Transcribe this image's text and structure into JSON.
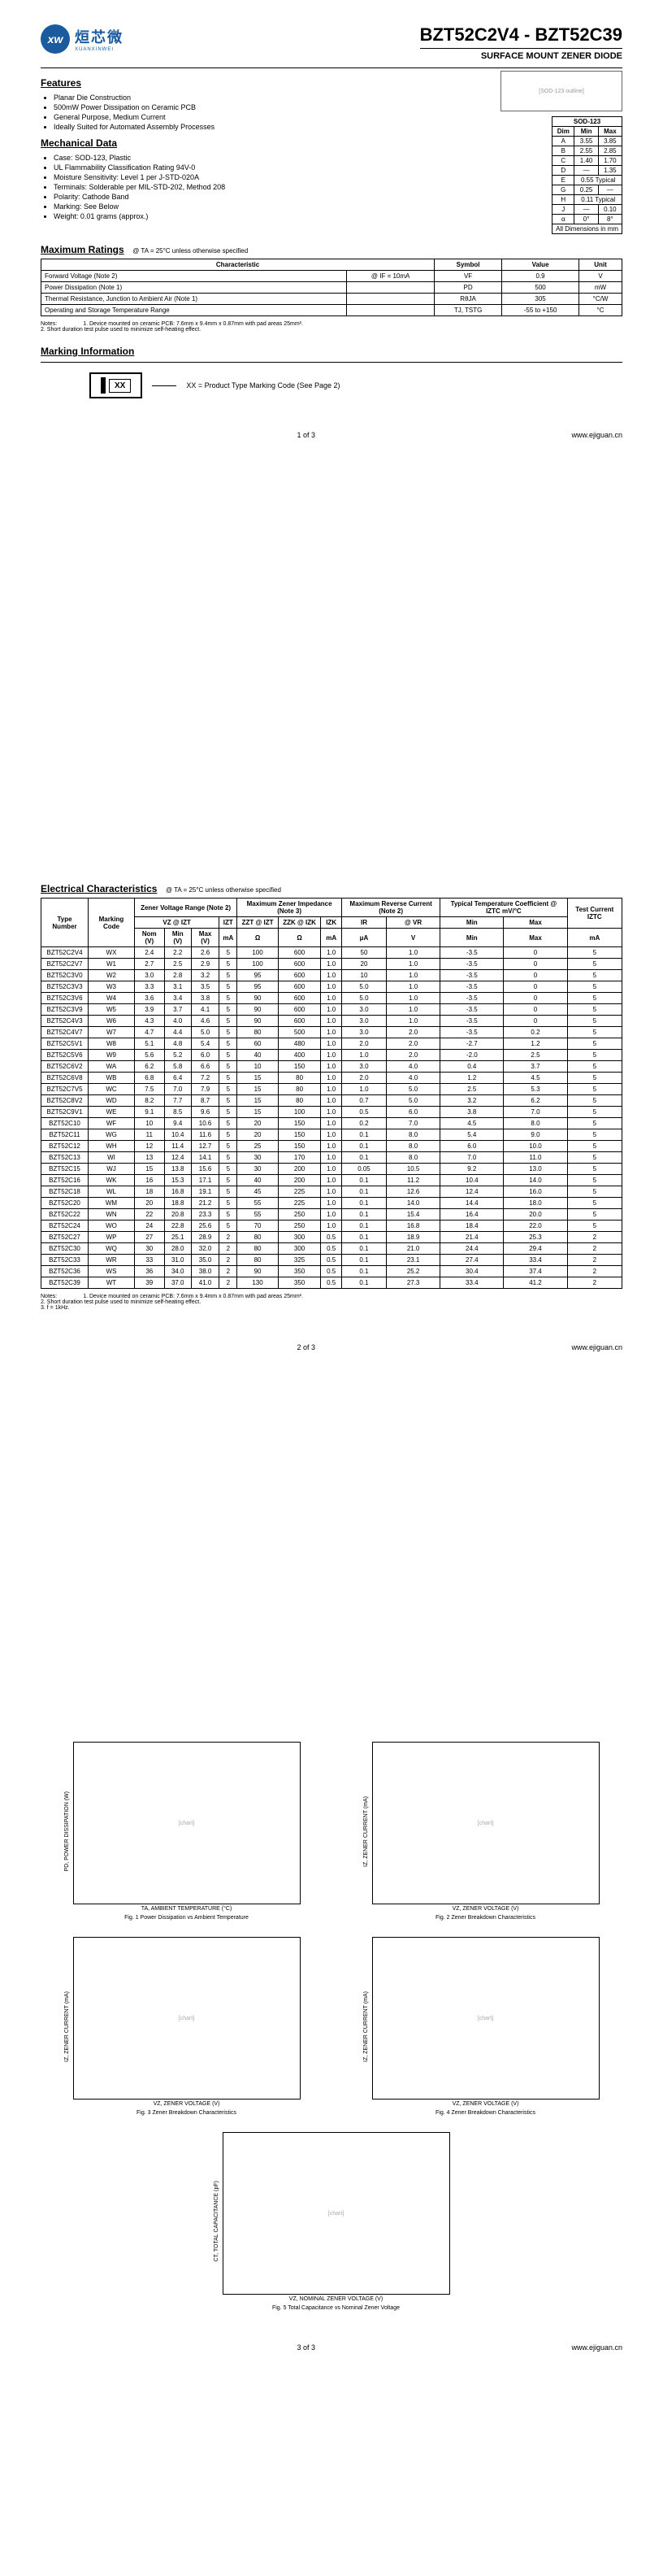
{
  "header": {
    "logo_cn": "烜芯微",
    "logo_en": "XUANXINWEI",
    "logo_mark": "xw",
    "title": "BZT52C2V4 - BZT52C39",
    "subtitle": "SURFACE MOUNT ZENER DIODE"
  },
  "sections": {
    "features": "Features",
    "mech": "Mechanical Data",
    "max_ratings": "Maximum Ratings",
    "marking": "Marking Information",
    "elec": "Electrical Characteristics"
  },
  "features": [
    "Planar Die Construction",
    "500mW Power Dissipation on Ceramic PCB",
    "General Purpose, Medium Current",
    "Ideally Suited for Automated Assembly Processes"
  ],
  "mech": [
    "Case: SOD-123, Plastic",
    "UL Flammability Classification Rating 94V-0",
    "Moisture Sensitivity: Level 1 per J-STD-020A",
    "Terminals: Solderable per MIL-STD-202, Method 208",
    "Polarity: Cathode Band",
    "Marking: See Below",
    "Weight: 0.01 grams (approx.)"
  ],
  "sod_title": "SOD-123",
  "sod_headers": [
    "Dim",
    "Min",
    "Max"
  ],
  "sod_rows": [
    [
      "A",
      "3.55",
      "3.85"
    ],
    [
      "B",
      "2.55",
      "2.85"
    ],
    [
      "C",
      "1.40",
      "1.70"
    ],
    [
      "D",
      "—",
      "1.35"
    ],
    [
      "E",
      "0.55 Typical",
      ""
    ],
    [
      "G",
      "0.25",
      "—"
    ],
    [
      "H",
      "0.11 Typical",
      ""
    ],
    [
      "J",
      "—",
      "0.10"
    ],
    [
      "α",
      "0°",
      "8°"
    ]
  ],
  "sod_footer": "All Dimensions in mm",
  "max_cond": "@ TA = 25°C unless otherwise specified",
  "max_headers": [
    "Characteristic",
    "Symbol",
    "Value",
    "Unit"
  ],
  "max_rows": [
    [
      "Forward Voltage (Note 2)",
      "@ IF = 10mA",
      "VF",
      "0.9",
      "V"
    ],
    [
      "Power Dissipation (Note 1)",
      "",
      "PD",
      "500",
      "mW"
    ],
    [
      "Thermal Resistance, Junction to Ambient Air (Note 1)",
      "",
      "RθJA",
      "305",
      "°C/W"
    ],
    [
      "Operating and Storage Temperature Range",
      "",
      "TJ, TSTG",
      "-55 to +150",
      "°C"
    ]
  ],
  "max_notes_label": "Notes:",
  "max_notes": [
    "1. Device mounted on ceramic PCB: 7.6mm x 9.4mm x 0.87mm with pad areas 25mm².",
    "2. Short duration test pulse used to minimize self-heating effect."
  ],
  "marking_code": "XX",
  "marking_text": "XX = Product Type Marking Code (See Page 2)",
  "footer": {
    "p1": "1 of 3",
    "p2": "2 of 3",
    "p3": "3 of 3",
    "url": "www.ejiguan.cn"
  },
  "elec_cond": "@ TA = 25°C unless otherwise specified",
  "elec_group_headers": {
    "type": "Type Number",
    "mark": "Marking Code",
    "zvr": "Zener Voltage Range (Note 2)",
    "mzi": "Maximum Zener Impedance (Note 3)",
    "mrc": "Maximum Reverse Current (Note 2)",
    "ttc": "Typical Temperature Coefficient @ IZTC mV/°C",
    "test": "Test Current IZTC"
  },
  "elec_sub_headers": {
    "vz": "VZ @ IZT",
    "izt": "IZT",
    "zzt": "ZZT @ IZT",
    "zzk": "ZZK @ IZK",
    "izk": "IZK",
    "ir": "IR",
    "vr": "@ VR",
    "min": "Min",
    "max": "Max"
  },
  "elec_val_headers": [
    "Nom (V)",
    "Min (V)",
    "Max (V)",
    "mA",
    "Ω",
    "Ω",
    "mA",
    "μA",
    "V",
    "Min",
    "Max",
    "mA"
  ],
  "elec_rows": [
    [
      "BZT52C2V4",
      "WX",
      "2.4",
      "2.2",
      "2.6",
      "5",
      "100",
      "600",
      "1.0",
      "50",
      "1.0",
      "-3.5",
      "0",
      "5"
    ],
    [
      "BZT52C2V7",
      "W1",
      "2.7",
      "2.5",
      "2.9",
      "5",
      "100",
      "600",
      "1.0",
      "20",
      "1.0",
      "-3.5",
      "0",
      "5"
    ],
    [
      "BZT52C3V0",
      "W2",
      "3.0",
      "2.8",
      "3.2",
      "5",
      "95",
      "600",
      "1.0",
      "10",
      "1.0",
      "-3.5",
      "0",
      "5"
    ],
    [
      "BZT52C3V3",
      "W3",
      "3.3",
      "3.1",
      "3.5",
      "5",
      "95",
      "600",
      "1.0",
      "5.0",
      "1.0",
      "-3.5",
      "0",
      "5"
    ],
    [
      "BZT52C3V6",
      "W4",
      "3.6",
      "3.4",
      "3.8",
      "5",
      "90",
      "600",
      "1.0",
      "5.0",
      "1.0",
      "-3.5",
      "0",
      "5"
    ],
    [
      "BZT52C3V9",
      "W5",
      "3.9",
      "3.7",
      "4.1",
      "5",
      "90",
      "600",
      "1.0",
      "3.0",
      "1.0",
      "-3.5",
      "0",
      "5"
    ],
    [
      "BZT52C4V3",
      "W6",
      "4.3",
      "4.0",
      "4.6",
      "5",
      "90",
      "600",
      "1.0",
      "3.0",
      "1.0",
      "-3.5",
      "0",
      "5"
    ],
    [
      "BZT52C4V7",
      "W7",
      "4.7",
      "4.4",
      "5.0",
      "5",
      "80",
      "500",
      "1.0",
      "3.0",
      "2.0",
      "-3.5",
      "0.2",
      "5"
    ],
    [
      "BZT52C5V1",
      "W8",
      "5.1",
      "4.8",
      "5.4",
      "5",
      "60",
      "480",
      "1.0",
      "2.0",
      "2.0",
      "-2.7",
      "1.2",
      "5"
    ],
    [
      "BZT52C5V6",
      "W9",
      "5.6",
      "5.2",
      "6.0",
      "5",
      "40",
      "400",
      "1.0",
      "1.0",
      "2.0",
      "-2.0",
      "2.5",
      "5"
    ],
    [
      "BZT52C6V2",
      "WA",
      "6.2",
      "5.8",
      "6.6",
      "5",
      "10",
      "150",
      "1.0",
      "3.0",
      "4.0",
      "0.4",
      "3.7",
      "5"
    ],
    [
      "BZT52C6V8",
      "WB",
      "6.8",
      "6.4",
      "7.2",
      "5",
      "15",
      "80",
      "1.0",
      "2.0",
      "4.0",
      "1.2",
      "4.5",
      "5"
    ],
    [
      "BZT52C7V5",
      "WC",
      "7.5",
      "7.0",
      "7.9",
      "5",
      "15",
      "80",
      "1.0",
      "1.0",
      "5.0",
      "2.5",
      "5.3",
      "5"
    ],
    [
      "BZT52C8V2",
      "WD",
      "8.2",
      "7.7",
      "8.7",
      "5",
      "15",
      "80",
      "1.0",
      "0.7",
      "5.0",
      "3.2",
      "6.2",
      "5"
    ],
    [
      "BZT52C9V1",
      "WE",
      "9.1",
      "8.5",
      "9.6",
      "5",
      "15",
      "100",
      "1.0",
      "0.5",
      "6.0",
      "3.8",
      "7.0",
      "5"
    ],
    [
      "BZT52C10",
      "WF",
      "10",
      "9.4",
      "10.6",
      "5",
      "20",
      "150",
      "1.0",
      "0.2",
      "7.0",
      "4.5",
      "8.0",
      "5"
    ],
    [
      "BZT52C11",
      "WG",
      "11",
      "10.4",
      "11.6",
      "5",
      "20",
      "150",
      "1.0",
      "0.1",
      "8.0",
      "5.4",
      "9.0",
      "5"
    ],
    [
      "BZT52C12",
      "WH",
      "12",
      "11.4",
      "12.7",
      "5",
      "25",
      "150",
      "1.0",
      "0.1",
      "8.0",
      "6.0",
      "10.0",
      "5"
    ],
    [
      "BZT52C13",
      "WI",
      "13",
      "12.4",
      "14.1",
      "5",
      "30",
      "170",
      "1.0",
      "0.1",
      "8.0",
      "7.0",
      "11.0",
      "5"
    ],
    [
      "BZT52C15",
      "WJ",
      "15",
      "13.8",
      "15.6",
      "5",
      "30",
      "200",
      "1.0",
      "0.05",
      "10.5",
      "9.2",
      "13.0",
      "5"
    ],
    [
      "BZT52C16",
      "WK",
      "16",
      "15.3",
      "17.1",
      "5",
      "40",
      "200",
      "1.0",
      "0.1",
      "11.2",
      "10.4",
      "14.0",
      "5"
    ],
    [
      "BZT52C18",
      "WL",
      "18",
      "16.8",
      "19.1",
      "5",
      "45",
      "225",
      "1.0",
      "0.1",
      "12.6",
      "12.4",
      "16.0",
      "5"
    ],
    [
      "BZT52C20",
      "WM",
      "20",
      "18.8",
      "21.2",
      "5",
      "55",
      "225",
      "1.0",
      "0.1",
      "14.0",
      "14.4",
      "18.0",
      "5"
    ],
    [
      "BZT52C22",
      "WN",
      "22",
      "20.8",
      "23.3",
      "5",
      "55",
      "250",
      "1.0",
      "0.1",
      "15.4",
      "16.4",
      "20.0",
      "5"
    ],
    [
      "BZT52C24",
      "WO",
      "24",
      "22.8",
      "25.6",
      "5",
      "70",
      "250",
      "1.0",
      "0.1",
      "16.8",
      "18.4",
      "22.0",
      "5"
    ],
    [
      "BZT52C27",
      "WP",
      "27",
      "25.1",
      "28.9",
      "2",
      "80",
      "300",
      "0.5",
      "0.1",
      "18.9",
      "21.4",
      "25.3",
      "2"
    ],
    [
      "BZT52C30",
      "WQ",
      "30",
      "28.0",
      "32.0",
      "2",
      "80",
      "300",
      "0.5",
      "0.1",
      "21.0",
      "24.4",
      "29.4",
      "2"
    ],
    [
      "BZT52C33",
      "WR",
      "33",
      "31.0",
      "35.0",
      "2",
      "80",
      "325",
      "0.5",
      "0.1",
      "23.1",
      "27.4",
      "33.4",
      "2"
    ],
    [
      "BZT52C36",
      "WS",
      "36",
      "34.0",
      "38.0",
      "2",
      "90",
      "350",
      "0.5",
      "0.1",
      "25.2",
      "30.4",
      "37.4",
      "2"
    ],
    [
      "BZT52C39",
      "WT",
      "39",
      "37.0",
      "41.0",
      "2",
      "130",
      "350",
      "0.5",
      "0.1",
      "27.3",
      "33.4",
      "41.2",
      "2"
    ]
  ],
  "elec_notes": [
    "1. Device mounted on ceramic PCB: 7.6mm x 9.4mm x 0.87mm with pad areas 25mm².",
    "2. Short duration test pulse used to minimize self-heating effect.",
    "3. f = 1kHz."
  ],
  "graphs": [
    {
      "ylabel": "PD, POWER DISSIPATION (W)",
      "xlabel": "TA, AMBIENT TEMPERATURE (°C)",
      "caption": "Fig. 1  Power Dissipation vs Ambient Temperature",
      "xlim": [
        0,
        150
      ],
      "ylim": [
        0,
        0.6
      ]
    },
    {
      "ylabel": "IZ, ZENER CURRENT (mA)",
      "xlabel": "VZ, ZENER VOLTAGE (V)",
      "caption": "Fig. 2  Zener Breakdown Characteristics",
      "xlim": [
        0,
        10
      ],
      "ylim": [
        0,
        50
      ]
    },
    {
      "ylabel": "IZ, ZENER CURRENT (mA)",
      "xlabel": "VZ, ZENER VOLTAGE (V)",
      "caption": "Fig. 3  Zener Breakdown Characteristics",
      "xlim": [
        0,
        40
      ],
      "ylim": [
        0,
        30
      ]
    },
    {
      "ylabel": "IZ, ZENER CURRENT (mA)",
      "xlabel": "VZ, ZENER VOLTAGE (V)",
      "caption": "Fig. 4  Zener Breakdown Characteristics",
      "xlim": [
        0,
        100
      ],
      "ylim": [
        0,
        10
      ]
    },
    {
      "ylabel": "CT, TOTAL CAPACITANCE (pF)",
      "xlabel": "VZ, NOMINAL ZENER VOLTAGE (V)",
      "caption": "Fig. 5  Total Capacitance vs Nominal Zener Voltage",
      "xlim": [
        1,
        100
      ],
      "ylim": [
        10,
        1000
      ]
    }
  ]
}
